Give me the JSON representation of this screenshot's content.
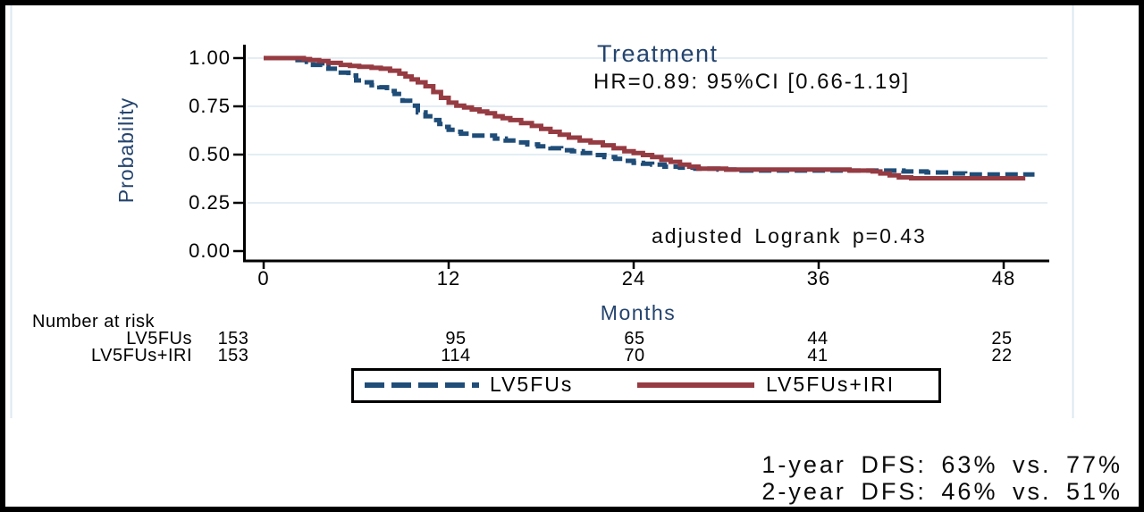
{
  "title": "Treatment",
  "annotations": {
    "hr": "HR=0.89: 95%CI [0.66-1.19]",
    "logrank": "adjusted Logrank p=0.43"
  },
  "risk_table": {
    "header": "Number at risk",
    "rows": [
      {
        "label": "LV5FUs",
        "values": [
          "153",
          "95",
          "65",
          "44",
          "25"
        ]
      },
      {
        "label": "LV5FUs+IRI",
        "values": [
          "153",
          "114",
          "70",
          "41",
          "22"
        ]
      }
    ]
  },
  "legend": {
    "items": [
      {
        "label": "LV5FUs",
        "color": "#1f4d78",
        "style": "dashed"
      },
      {
        "label": "LV5FUs+IRI",
        "color": "#963b42",
        "style": "solid"
      }
    ]
  },
  "footnotes": [
    "1-year DFS: 63% vs. 77%",
    "2-year DFS: 46% vs. 51%"
  ],
  "colors": {
    "navy": "#1f4d78",
    "maroon": "#963b42",
    "heading_blue": "#24446e",
    "gridline": "#e4edf4",
    "region_edge": "#dce8f1"
  },
  "chart_data": {
    "type": "line",
    "subtype": "kaplan-meier-step",
    "title": "Treatment",
    "xlabel": "Months",
    "ylabel": "Probability",
    "xlim": [
      0,
      50
    ],
    "ylim": [
      0.0,
      1.0
    ],
    "grid": true,
    "legend_position": "bottom",
    "x_ticks": [
      0,
      12,
      24,
      36,
      48
    ],
    "y_ticks": [
      1.0,
      0.75,
      0.5,
      0.25,
      0.0
    ],
    "x_tick_labels": [
      "0",
      "12",
      "24",
      "36",
      "48"
    ],
    "y_tick_labels": [
      "1.00",
      "0.75",
      "0.50",
      "0.25",
      "0.00"
    ],
    "series": [
      {
        "name": "LV5FUs",
        "color": "#1f4d78",
        "dash": true,
        "points": [
          [
            0,
            1.0
          ],
          [
            1.8,
            1.0
          ],
          [
            2.2,
            0.99
          ],
          [
            2.8,
            0.98
          ],
          [
            3.2,
            0.965
          ],
          [
            3.8,
            0.955
          ],
          [
            4.2,
            0.945
          ],
          [
            5,
            0.925
          ],
          [
            5.5,
            0.91
          ],
          [
            6,
            0.885
          ],
          [
            6.5,
            0.875
          ],
          [
            7,
            0.86
          ],
          [
            7.5,
            0.85
          ],
          [
            8,
            0.83
          ],
          [
            8.5,
            0.815
          ],
          [
            9,
            0.78
          ],
          [
            9.5,
            0.755
          ],
          [
            10,
            0.72
          ],
          [
            10.5,
            0.7
          ],
          [
            11,
            0.68
          ],
          [
            11.4,
            0.66
          ],
          [
            11.7,
            0.645
          ],
          [
            12,
            0.63
          ],
          [
            12.4,
            0.62
          ],
          [
            12.8,
            0.61
          ],
          [
            13.5,
            0.6
          ],
          [
            15,
            0.585
          ],
          [
            15.7,
            0.575
          ],
          [
            16.4,
            0.565
          ],
          [
            17.1,
            0.555
          ],
          [
            17.8,
            0.545
          ],
          [
            18.6,
            0.535
          ],
          [
            19.3,
            0.525
          ],
          [
            20,
            0.52
          ],
          [
            20.7,
            0.51
          ],
          [
            21.4,
            0.5
          ],
          [
            22.1,
            0.49
          ],
          [
            22.8,
            0.48
          ],
          [
            23.4,
            0.47
          ],
          [
            24,
            0.46
          ],
          [
            24.6,
            0.455
          ],
          [
            25.2,
            0.45
          ],
          [
            26,
            0.44
          ],
          [
            27,
            0.435
          ],
          [
            28,
            0.43
          ],
          [
            29.5,
            0.425
          ],
          [
            31,
            0.42
          ],
          [
            40,
            0.42
          ],
          [
            41.5,
            0.415
          ],
          [
            43,
            0.41
          ],
          [
            44.5,
            0.405
          ],
          [
            45.5,
            0.4
          ],
          [
            50,
            0.4
          ]
        ]
      },
      {
        "name": "LV5FUs+IRI",
        "color": "#963b42",
        "dash": false,
        "points": [
          [
            0,
            1.0
          ],
          [
            2.2,
            1.0
          ],
          [
            2.6,
            0.995
          ],
          [
            3,
            0.99
          ],
          [
            3.6,
            0.985
          ],
          [
            4.2,
            0.975
          ],
          [
            5,
            0.965
          ],
          [
            5.6,
            0.96
          ],
          [
            6.2,
            0.955
          ],
          [
            7,
            0.95
          ],
          [
            7.6,
            0.945
          ],
          [
            8.2,
            0.935
          ],
          [
            8.8,
            0.92
          ],
          [
            9.2,
            0.905
          ],
          [
            9.6,
            0.89
          ],
          [
            10,
            0.875
          ],
          [
            10.5,
            0.855
          ],
          [
            11,
            0.825
          ],
          [
            11.5,
            0.795
          ],
          [
            12,
            0.77
          ],
          [
            12.5,
            0.755
          ],
          [
            13,
            0.745
          ],
          [
            13.5,
            0.735
          ],
          [
            14,
            0.725
          ],
          [
            14.5,
            0.715
          ],
          [
            15,
            0.7
          ],
          [
            15.5,
            0.69
          ],
          [
            16,
            0.68
          ],
          [
            16.7,
            0.665
          ],
          [
            17.4,
            0.65
          ],
          [
            18,
            0.635
          ],
          [
            18.6,
            0.62
          ],
          [
            19.2,
            0.605
          ],
          [
            19.8,
            0.59
          ],
          [
            20.5,
            0.575
          ],
          [
            21.2,
            0.565
          ],
          [
            22,
            0.55
          ],
          [
            22.7,
            0.535
          ],
          [
            23.4,
            0.52
          ],
          [
            24,
            0.51
          ],
          [
            24.6,
            0.5
          ],
          [
            25.2,
            0.49
          ],
          [
            25.8,
            0.475
          ],
          [
            26.4,
            0.465
          ],
          [
            27,
            0.45
          ],
          [
            27.6,
            0.44
          ],
          [
            28.2,
            0.43
          ],
          [
            30,
            0.425
          ],
          [
            38,
            0.42
          ],
          [
            39.5,
            0.415
          ],
          [
            40,
            0.405
          ],
          [
            40.6,
            0.395
          ],
          [
            41.2,
            0.385
          ],
          [
            42,
            0.38
          ],
          [
            49.4,
            0.38
          ]
        ]
      }
    ],
    "key_values": {
      "dfs_1yr": {
        "LV5FUs": "63%",
        "LV5FUs+IRI": "77%"
      },
      "dfs_2yr": {
        "LV5FUs": "46%",
        "LV5FUs+IRI": "51%"
      }
    }
  }
}
